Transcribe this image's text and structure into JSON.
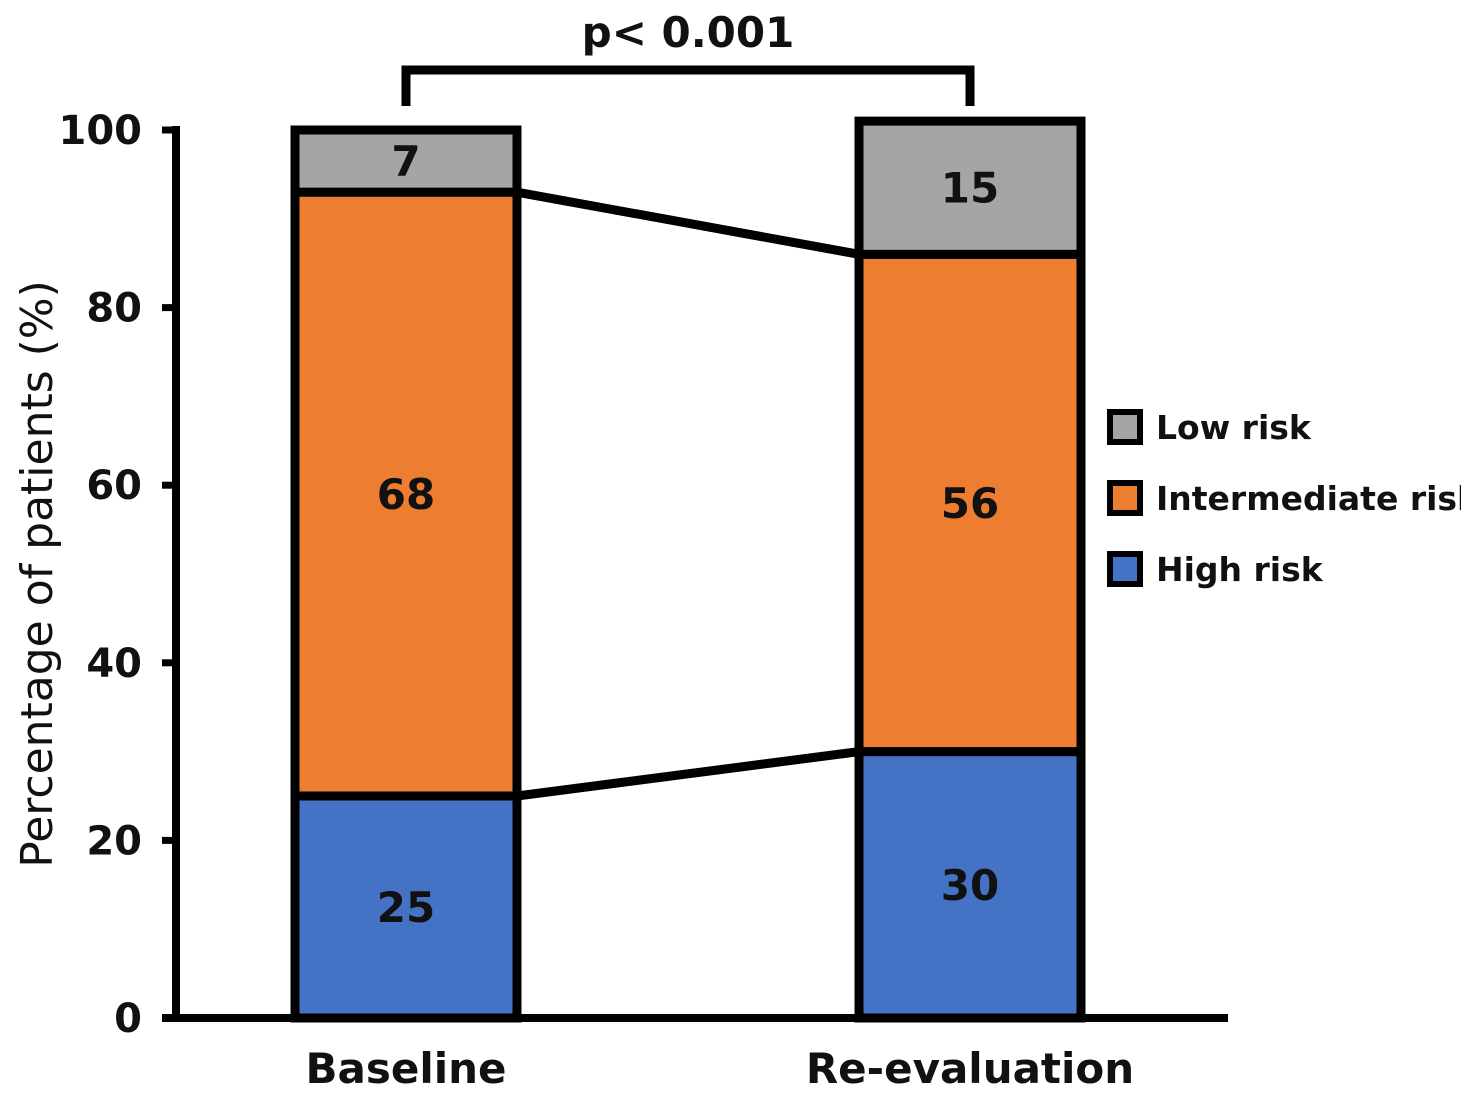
{
  "chart_data": {
    "type": "bar",
    "stacked": true,
    "categories": [
      "Baseline",
      "Re-evaluation"
    ],
    "series": [
      {
        "name": "High risk",
        "values": [
          25,
          30
        ],
        "color": "#4472c4"
      },
      {
        "name": "Intermediate risk",
        "values": [
          68,
          56
        ],
        "color": "#ed7d31"
      },
      {
        "name": "Low risk",
        "values": [
          7,
          15
        ],
        "color": "#a5a5a5"
      }
    ],
    "legend_order": [
      "Low risk",
      "Intermediate risk",
      "High risk"
    ],
    "legend_position": "right",
    "ylabel": "Percentage of patients (%)",
    "xlabel": "",
    "ylim": [
      0,
      100
    ],
    "yticks": [
      0,
      20,
      40,
      60,
      80,
      100
    ],
    "annotation": "p< 0.001",
    "grid": false
  }
}
